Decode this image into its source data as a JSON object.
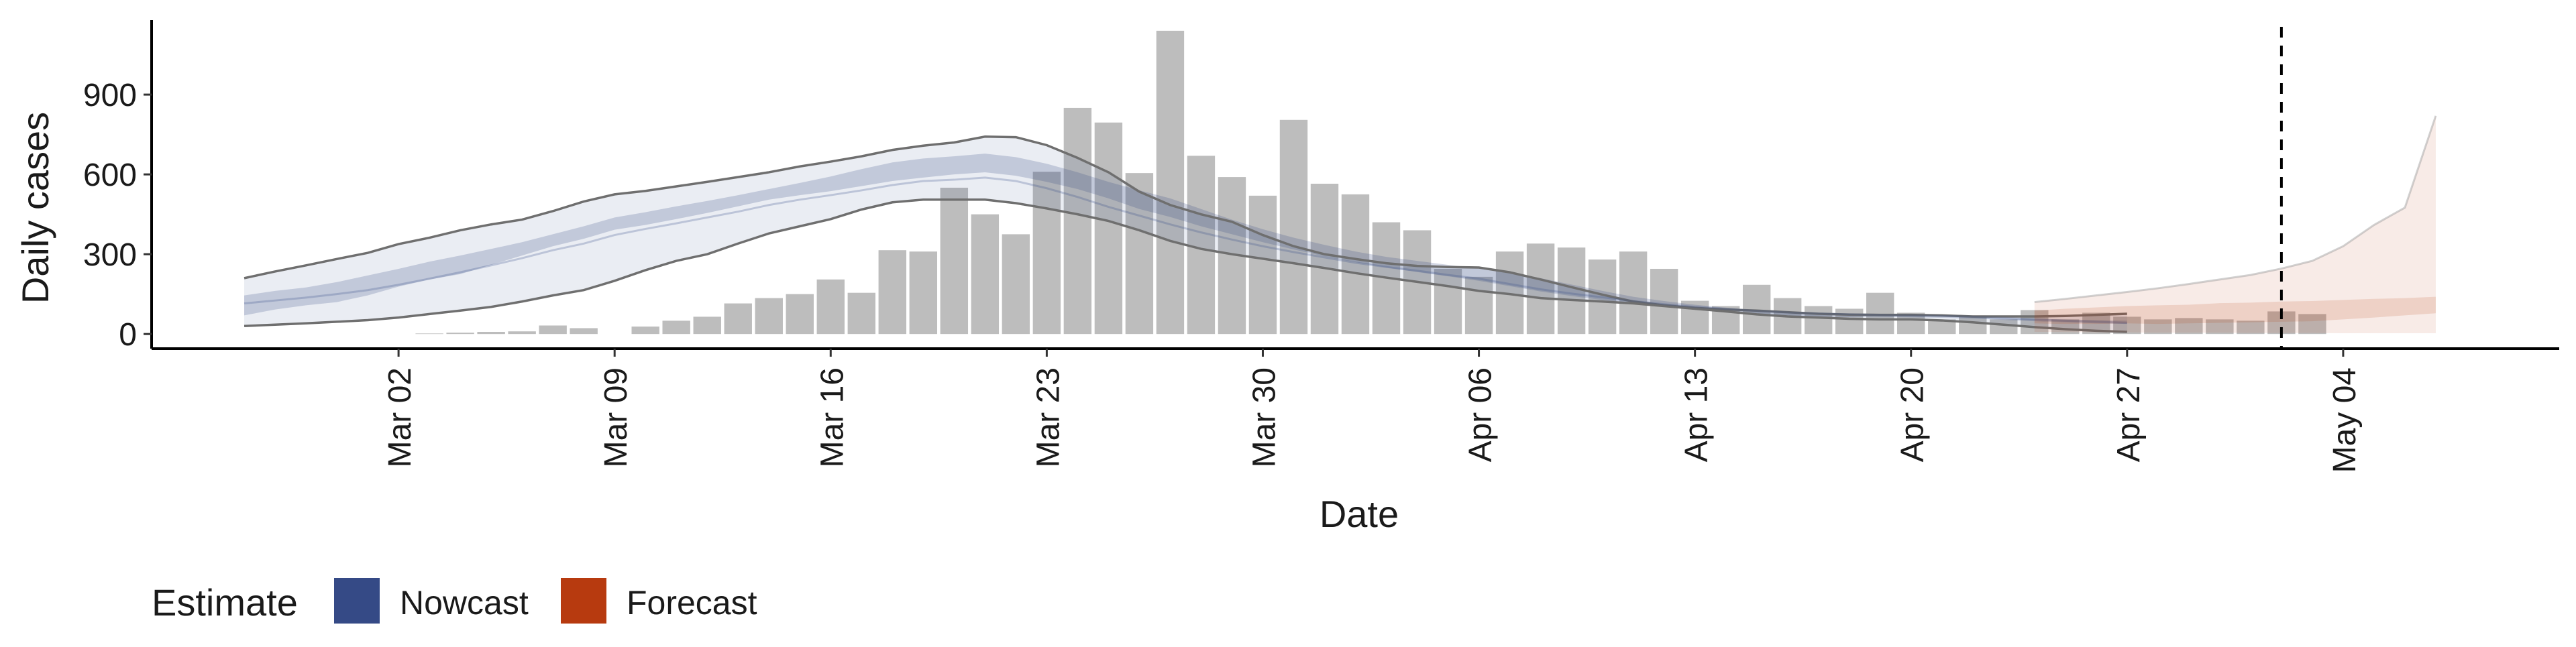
{
  "chart_data": {
    "type": "bar",
    "xlabel": "Date",
    "ylabel": "Daily cases",
    "x_range": [
      "2020-02-23",
      "2020-05-11"
    ],
    "ylim": [
      -55,
      1180
    ],
    "y_ticks": [
      0,
      300,
      600,
      900
    ],
    "x_ticks": [
      {
        "date": "2020-03-02",
        "label": "Mar 02"
      },
      {
        "date": "2020-03-09",
        "label": "Mar 09"
      },
      {
        "date": "2020-03-16",
        "label": "Mar 16"
      },
      {
        "date": "2020-03-23",
        "label": "Mar 23"
      },
      {
        "date": "2020-03-30",
        "label": "Mar 30"
      },
      {
        "date": "2020-04-06",
        "label": "Apr 06"
      },
      {
        "date": "2020-04-13",
        "label": "Apr 13"
      },
      {
        "date": "2020-04-20",
        "label": "Apr 20"
      },
      {
        "date": "2020-04-27",
        "label": "Apr 27"
      },
      {
        "date": "2020-05-04",
        "label": "May 04"
      }
    ],
    "grid": false,
    "legend_position": "bottom-left",
    "legend_title": "Estimate",
    "colors": {
      "bars": "#bdbdbd",
      "Nowcast": "#354a86",
      "Forecast": "#b73a0f",
      "median_line": "#6f6f6f",
      "cutoff_line": "#000000"
    },
    "reported_cases": {
      "start_date": "2020-02-26",
      "values": [
        0,
        0,
        0,
        0,
        0,
        0,
        2,
        5,
        8,
        10,
        32,
        22,
        0,
        28,
        50,
        65,
        115,
        135,
        150,
        205,
        155,
        315,
        310,
        550,
        450,
        375,
        610,
        850,
        795,
        605,
        1140,
        670,
        590,
        520,
        805,
        565,
        525,
        420,
        390,
        245,
        215,
        310,
        340,
        325,
        280,
        310,
        245,
        125,
        105,
        185,
        135,
        105,
        95,
        155,
        80,
        55,
        70,
        55,
        90,
        55,
        80,
        65,
        55,
        60,
        55,
        50,
        85,
        75
      ]
    },
    "series": [
      {
        "name": "Nowcast",
        "start_date": "2020-02-26",
        "lower_90": [
          30,
          35,
          40,
          46,
          52,
          62,
          75,
          88,
          102,
          122,
          145,
          165,
          200,
          240,
          275,
          300,
          340,
          378,
          405,
          432,
          468,
          495,
          505,
          505,
          505,
          492,
          472,
          450,
          425,
          390,
          350,
          320,
          300,
          283,
          266,
          248,
          229,
          212,
          196,
          180,
          162,
          150,
          135,
          128,
          122,
          115,
          105,
          95,
          85,
          74,
          66,
          62,
          57,
          55,
          55,
          51,
          44,
          35,
          26,
          18,
          12,
          8
        ],
        "upper_90": [
          210,
          235,
          258,
          282,
          305,
          338,
          362,
          390,
          412,
          430,
          462,
          498,
          525,
          538,
          555,
          572,
          590,
          608,
          630,
          648,
          668,
          692,
          708,
          720,
          742,
          740,
          710,
          662,
          608,
          535,
          485,
          450,
          422,
          372,
          330,
          300,
          282,
          266,
          256,
          252,
          250,
          232,
          205,
          176,
          148,
          122,
          108,
          98,
          92,
          88,
          82,
          76,
          73,
          72,
          72,
          70,
          66,
          66,
          66,
          68,
          72,
          76
        ],
        "lower_50": [
          70,
          92,
          108,
          120,
          145,
          178,
          205,
          225,
          260,
          295,
          330,
          358,
          392,
          410,
          432,
          455,
          480,
          505,
          522,
          537,
          556,
          575,
          588,
          600,
          608,
          595,
          572,
          545,
          510,
          470,
          440,
          405,
          375,
          345,
          318,
          292,
          270,
          250,
          233,
          217,
          200,
          180,
          160,
          143,
          128,
          115,
          102,
          93,
          84,
          77,
          70,
          66,
          64,
          64,
          63,
          61,
          58,
          53,
          48,
          44,
          40,
          38
        ],
        "upper_50": [
          145,
          162,
          175,
          195,
          220,
          245,
          272,
          295,
          320,
          345,
          375,
          405,
          438,
          458,
          480,
          500,
          522,
          545,
          568,
          592,
          620,
          645,
          660,
          668,
          678,
          665,
          640,
          608,
          572,
          540,
          510,
          470,
          430,
          394,
          362,
          335,
          310,
          290,
          275,
          260,
          246,
          230,
          210,
          186,
          162,
          140,
          124,
          110,
          99,
          90,
          84,
          79,
          75,
          72,
          70,
          67,
          64,
          60,
          57,
          55,
          52,
          50
        ]
      },
      {
        "name": "Forecast",
        "start_date": "2020-04-24",
        "lower_90": [
          8,
          7,
          6,
          6,
          5,
          5,
          5,
          4,
          4,
          4,
          3,
          3,
          3,
          3
        ],
        "upper_90": [
          120,
          132,
          145,
          158,
          172,
          188,
          205,
          222,
          246,
          275,
          330,
          410,
          475,
          820
        ],
        "lower_50": [
          40,
          38,
          38,
          40,
          38,
          40,
          42,
          44,
          46,
          48,
          55,
          62,
          70,
          78
        ],
        "upper_50": [
          88,
          95,
          100,
          105,
          108,
          110,
          116,
          118,
          122,
          124,
          128,
          132,
          135,
          140
        ]
      }
    ],
    "median": {
      "start_date": "2020-02-26",
      "values": [
        115,
        126,
        137,
        150,
        165,
        185,
        208,
        232,
        258,
        285,
        315,
        340,
        372,
        395,
        416,
        438,
        460,
        485,
        505,
        522,
        540,
        560,
        575,
        580,
        588,
        575,
        548,
        515,
        478,
        445,
        412,
        382,
        355,
        330,
        308,
        288,
        268,
        252,
        238,
        222,
        208,
        188,
        168,
        152,
        138,
        124,
        112,
        102,
        94,
        87,
        81,
        77,
        74,
        72,
        70,
        68,
        65,
        60,
        55,
        50,
        46,
        42
      ]
    },
    "cutoff_date": "2020-05-02"
  }
}
